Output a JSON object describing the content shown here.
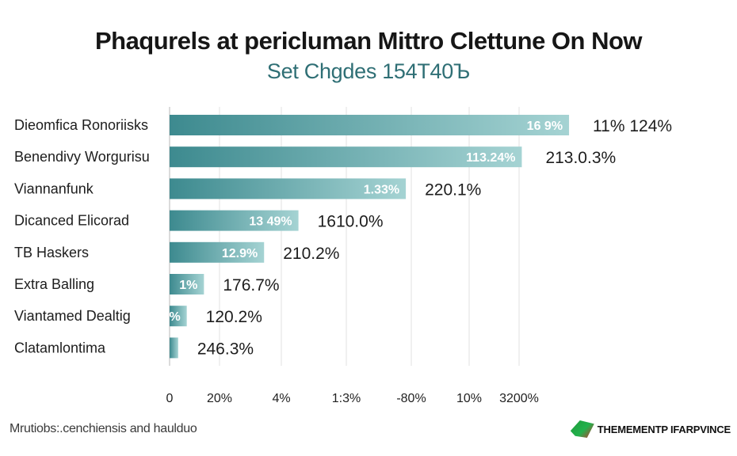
{
  "title": "Phaqurels at pericluman Mittro Clettune On Now",
  "subtitle": "Set Chgdes 154T40Ъ",
  "footnote": "Mrutiobs:.cenchiensis and haulduo",
  "brand": "THEMEMENTP IFARPVINCE",
  "colors": {
    "bar_dark": "#3d8a8f",
    "bar_light": "#a5d3d3",
    "grid": "#e2e2e2"
  },
  "chart_data": {
    "type": "bar",
    "orientation": "horizontal",
    "title": "Phaqurels at pericluman Mittro Clettune On Now",
    "subtitle": "Set Chgdes 154T40Ъ",
    "categories": [
      "Dieomfica Ronoriisks",
      "Benendivy Worgurisu",
      "Viannanfunk",
      "Dicanced Elicorad",
      "TB Haskers",
      "Extra Balling",
      "Viantamed Dealtig",
      "Clatamlontima"
    ],
    "values": [
      93,
      82,
      55,
      30,
      22,
      8,
      4,
      2
    ],
    "bar_labels": [
      "16 9%",
      "113.24%",
      "1.33%",
      "13 49%",
      "12.9%",
      "1%",
      "%",
      ""
    ],
    "value_labels": [
      "11% 124%",
      "213.0.3%",
      "220.1%",
      "1610.0%",
      "210.2%",
      "176.7%",
      "120.2%",
      "246.3%"
    ],
    "x_tick_labels": [
      "0",
      "20%",
      "4%",
      "1:3%",
      "-80%",
      "10%",
      "3200%"
    ],
    "xlim": [
      0,
      100
    ],
    "grid": true,
    "legend": "none"
  }
}
